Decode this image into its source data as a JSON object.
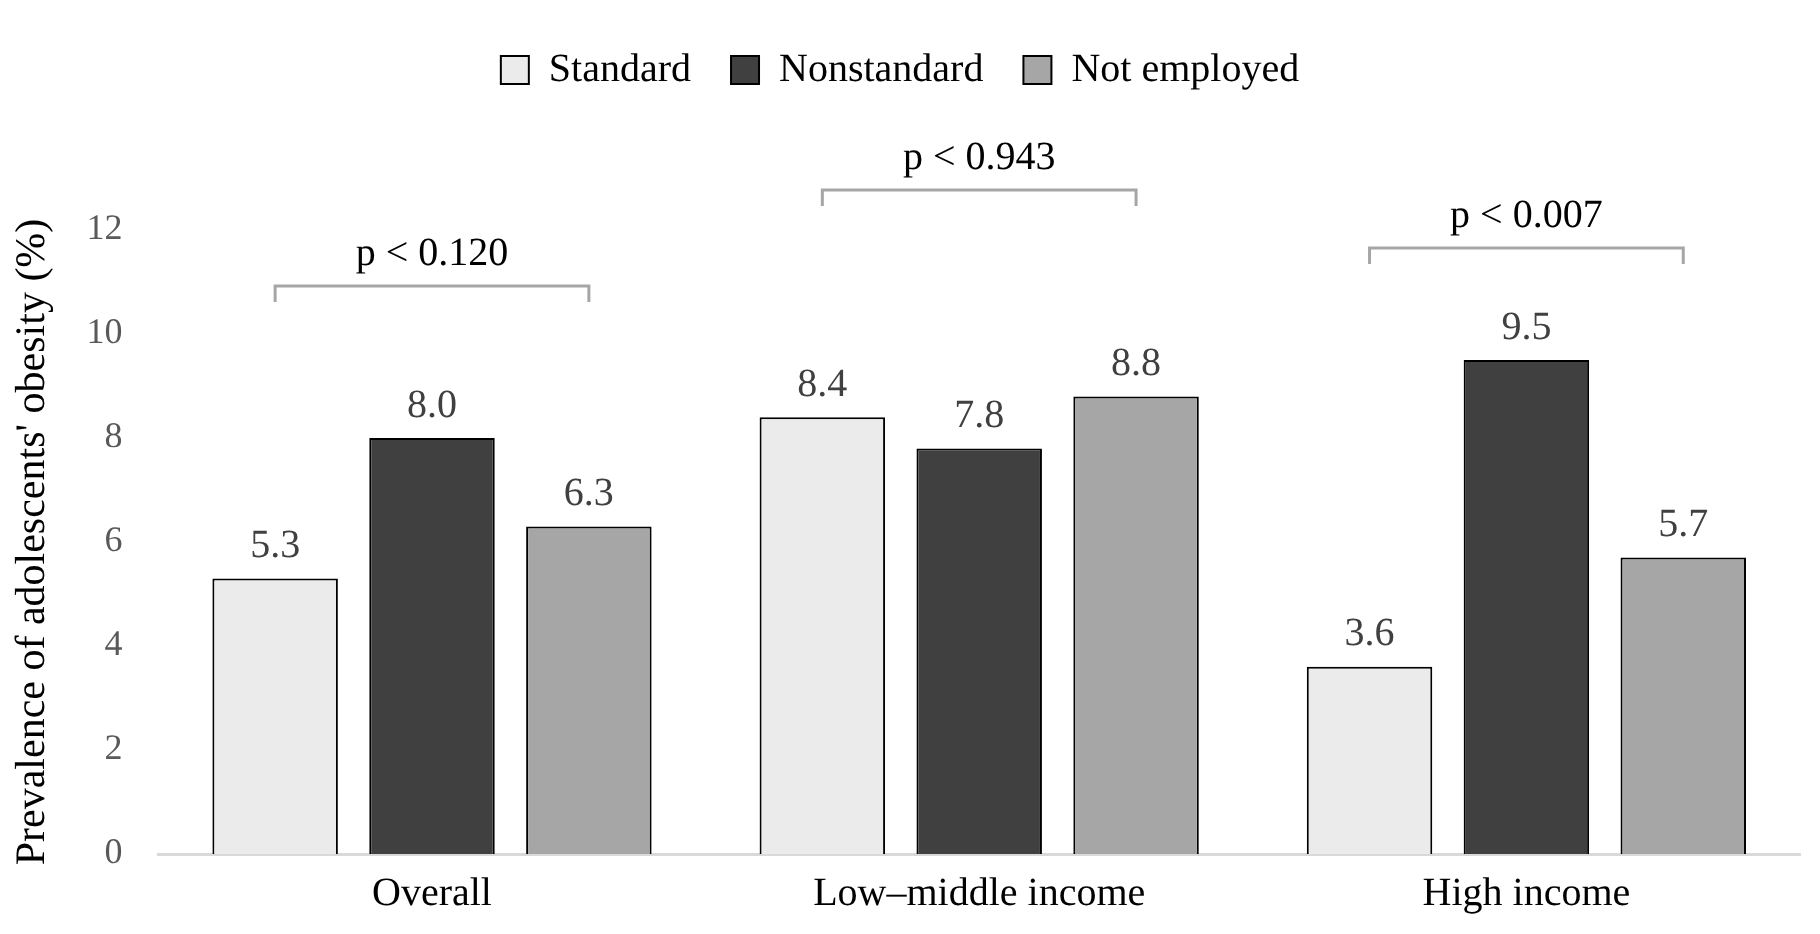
{
  "chart_data": {
    "type": "bar",
    "ylabel": "Prevalence of adolescents' obesity (%)",
    "categories": [
      "Overall",
      "Low–middle income",
      "High income"
    ],
    "series": [
      {
        "name": "Standard",
        "color": "#ebebeb",
        "values": [
          5.3,
          8.4,
          3.6
        ],
        "value_labels": [
          "5.3",
          "8.4",
          "3.6"
        ]
      },
      {
        "name": "Nonstandard",
        "color": "#404040",
        "values": [
          8.0,
          7.8,
          9.5
        ],
        "value_labels": [
          "8.0",
          "7.8",
          "9.5"
        ]
      },
      {
        "name": "Not employed",
        "color": "#a6a6a6",
        "values": [
          6.3,
          8.8,
          5.7
        ],
        "value_labels": [
          "6.3",
          "8.8",
          "5.7"
        ]
      }
    ],
    "ylim": [
      0,
      12
    ],
    "yticks": [
      0,
      2,
      4,
      6,
      8,
      10,
      12
    ],
    "grid": false,
    "legend": "top",
    "annotations": [
      "p < 0.120",
      "p < 0.943",
      "p < 0.007"
    ]
  }
}
